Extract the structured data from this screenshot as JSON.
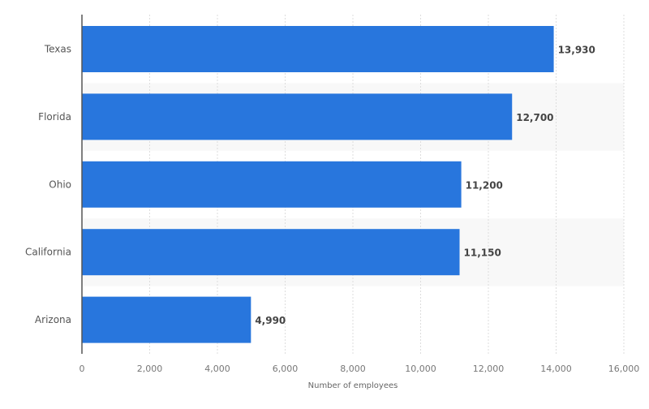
{
  "chart_data": {
    "type": "bar",
    "orientation": "horizontal",
    "categories": [
      "Texas",
      "Florida",
      "Ohio",
      "California",
      "Arizona"
    ],
    "values": [
      13930,
      12700,
      11200,
      11150,
      4990
    ],
    "value_labels": [
      "13,930",
      "12,700",
      "11,200",
      "11,150",
      "4,990"
    ],
    "title": "",
    "xlabel": "Number of employees",
    "ylabel": "",
    "xlim": [
      0,
      16000
    ],
    "xticks": [
      0,
      2000,
      4000,
      6000,
      8000,
      10000,
      12000,
      14000,
      16000
    ],
    "xtick_labels": [
      "0",
      "2,000",
      "4,000",
      "6,000",
      "8,000",
      "10,000",
      "12,000",
      "14,000",
      "16,000"
    ],
    "grid": "vertical dashed",
    "legend": "none",
    "colors": {
      "bar": "#2876dd",
      "alt_band": "#f8f8f8",
      "grid": "#dddddd",
      "axis": "#555555"
    }
  }
}
